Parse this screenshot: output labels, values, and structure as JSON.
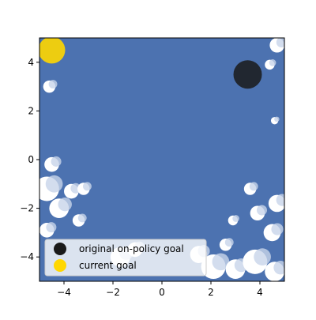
{
  "chart_data": {
    "type": "scatter",
    "title": "",
    "xlabel": "",
    "ylabel": "",
    "xlim": [
      -5,
      5
    ],
    "ylim": [
      -5,
      5
    ],
    "xticks": [
      -4,
      -2,
      0,
      2,
      4
    ],
    "yticks": [
      -4,
      -2,
      0,
      2,
      4
    ],
    "xtick_labels": [
      "−4",
      "−2",
      "0",
      "2",
      "4"
    ],
    "ytick_labels": [
      "−4",
      "−2",
      "0",
      "2",
      "4"
    ],
    "grid": false,
    "legend_position": "lower-left",
    "coverage": {
      "color": "#4c72b0",
      "description_points": "dense blue scatter covering most of the plotting area",
      "uncovered_regions": [
        {
          "x": -4.6,
          "y": 3.0,
          "r": 0.25
        },
        {
          "x": -4.5,
          "y": -0.2,
          "r": 0.3
        },
        {
          "x": -4.7,
          "y": -1.2,
          "r": 0.5
        },
        {
          "x": -4.2,
          "y": -2.0,
          "r": 0.4
        },
        {
          "x": -3.7,
          "y": -1.3,
          "r": 0.3
        },
        {
          "x": -3.2,
          "y": -1.2,
          "r": 0.25
        },
        {
          "x": -4.7,
          "y": -2.9,
          "r": 0.3
        },
        {
          "x": -3.4,
          "y": -2.5,
          "r": 0.25
        },
        {
          "x": -1.7,
          "y": -4.0,
          "r": 0.4
        },
        {
          "x": -1.1,
          "y": -3.7,
          "r": 0.3
        },
        {
          "x": 2.1,
          "y": -4.4,
          "r": 0.5
        },
        {
          "x": 1.5,
          "y": -3.9,
          "r": 0.35
        },
        {
          "x": 3.0,
          "y": -4.5,
          "r": 0.4
        },
        {
          "x": 3.8,
          "y": -4.2,
          "r": 0.5
        },
        {
          "x": 4.6,
          "y": -4.6,
          "r": 0.4
        },
        {
          "x": 4.5,
          "y": -3.0,
          "r": 0.35
        },
        {
          "x": 3.9,
          "y": -2.2,
          "r": 0.3
        },
        {
          "x": 4.7,
          "y": -1.8,
          "r": 0.35
        },
        {
          "x": 3.6,
          "y": -1.2,
          "r": 0.25
        },
        {
          "x": 4.6,
          "y": 1.6,
          "r": 0.15
        },
        {
          "x": 4.7,
          "y": 4.7,
          "r": 0.3
        },
        {
          "x": 4.4,
          "y": 3.9,
          "r": 0.2
        },
        {
          "x": 2.9,
          "y": -2.5,
          "r": 0.2
        },
        {
          "x": 2.6,
          "y": -3.5,
          "r": 0.25
        }
      ]
    },
    "series": [
      {
        "name": "original on-policy goal",
        "color": "#1a1a1a",
        "points": [
          {
            "x": 3.5,
            "y": 3.5
          }
        ]
      },
      {
        "name": "current goal",
        "color": "#ffd700",
        "points": [
          {
            "x": -4.5,
            "y": 4.5
          }
        ]
      }
    ]
  }
}
